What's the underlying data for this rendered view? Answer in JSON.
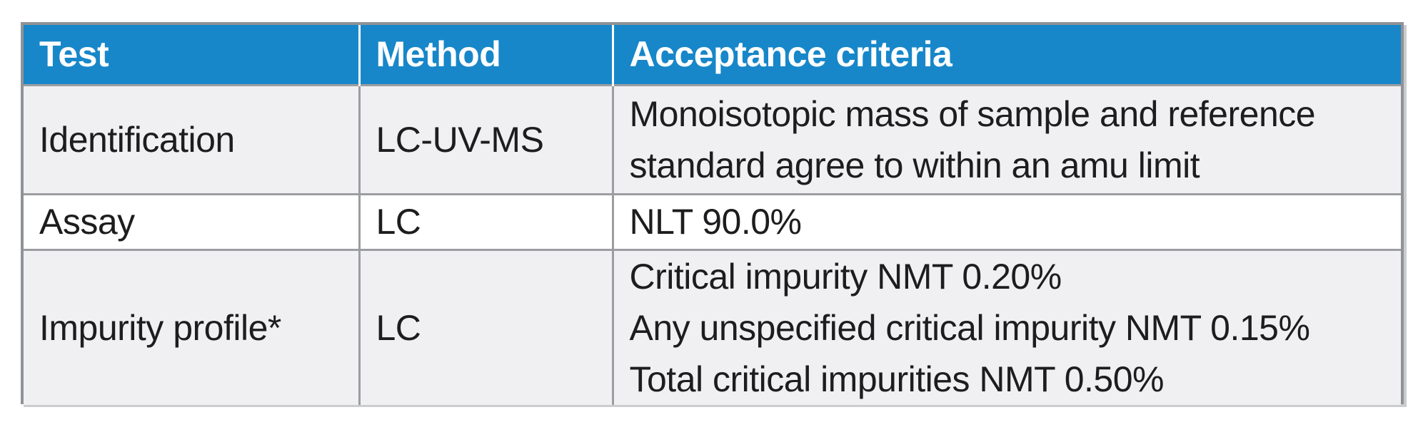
{
  "table": {
    "columns": [
      {
        "label": "Test"
      },
      {
        "label": "Method"
      },
      {
        "label": "Acceptance criteria"
      }
    ],
    "rows": [
      {
        "test": "Identification",
        "method": "LC-UV-MS",
        "criteria": [
          "Monoisotopic mass of sample and reference",
          "standard agree to within an amu limit"
        ]
      },
      {
        "test": "Assay",
        "method": "LC",
        "criteria": [
          "NLT 90.0%"
        ]
      },
      {
        "test": "Impurity profile*",
        "method": "LC",
        "criteria": [
          "Critical impurity NMT 0.20%",
          "Any unspecified critical impurity NMT 0.15%",
          "Total critical impurities NMT 0.50%"
        ]
      }
    ],
    "colors": {
      "header_bg": "#1787c9",
      "header_text": "#ffffff",
      "row_alt_bg": "#f0f0f2",
      "row_bg": "#ffffff",
      "border": "#8f9296",
      "inner_border": "#9b9da0",
      "text": "#1d1d1f"
    }
  }
}
